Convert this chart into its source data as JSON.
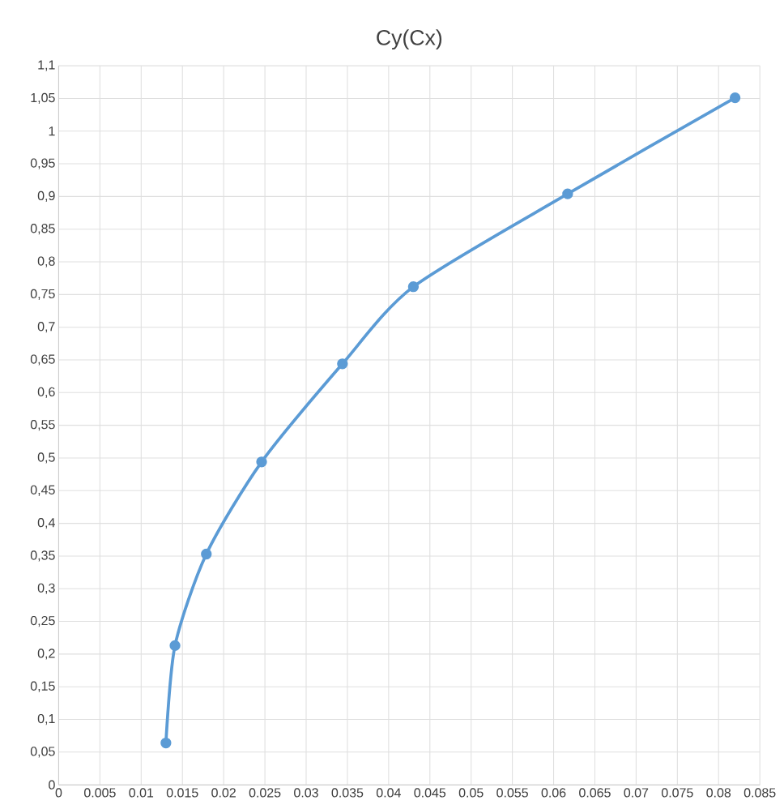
{
  "chart_data": {
    "type": "line",
    "title": "Cy(Cx)",
    "x": [
      0.013,
      0.0141,
      0.0179,
      0.0246,
      0.0344,
      0.043,
      0.0617,
      0.082
    ],
    "series": [
      {
        "color": "#5b9bd5",
        "values": [
          0.064,
          0.213,
          0.353,
          0.494,
          0.644,
          0.762,
          0.904,
          1.051
        ]
      }
    ],
    "xlim": [
      0,
      0.085
    ],
    "xticks": [
      0,
      0.005,
      0.01,
      0.015,
      0.02,
      0.025,
      0.03,
      0.035,
      0.04,
      0.045,
      0.05,
      0.055,
      0.06,
      0.065,
      0.07,
      0.075,
      0.08,
      0.085
    ],
    "ylim": [
      0,
      1.1
    ],
    "yticks": [
      0,
      {
        "value": 0.05,
        "label": "0,05"
      },
      {
        "value": 0.1,
        "label": "0,1"
      },
      {
        "value": 0.15,
        "label": "0,15"
      },
      {
        "value": 0.2,
        "label": "0,2"
      },
      {
        "value": 0.25,
        "label": "0,25"
      },
      {
        "value": 0.3,
        "label": "0,3"
      },
      {
        "value": 0.35,
        "label": "0,35"
      },
      {
        "value": 0.4,
        "label": "0,4"
      },
      {
        "value": 0.45,
        "label": "0,45"
      },
      {
        "value": 0.5,
        "label": "0,5"
      },
      {
        "value": 0.55,
        "label": "0,55"
      },
      {
        "value": 0.6,
        "label": "0,6"
      },
      {
        "value": 0.65,
        "label": "0,65"
      },
      {
        "value": 0.7,
        "label": "0,7"
      },
      {
        "value": 0.75,
        "label": "0,75"
      },
      {
        "value": 0.8,
        "label": "0,8"
      },
      {
        "value": 0.85,
        "label": "0,85"
      },
      {
        "value": 0.9,
        "label": "0,9"
      },
      {
        "value": 0.95,
        "label": "0,95"
      },
      1,
      {
        "value": 1.05,
        "label": "1,05"
      },
      {
        "value": 1.1,
        "label": "1,1"
      }
    ],
    "grid": true,
    "marker": "circle",
    "line_style": "solid"
  }
}
